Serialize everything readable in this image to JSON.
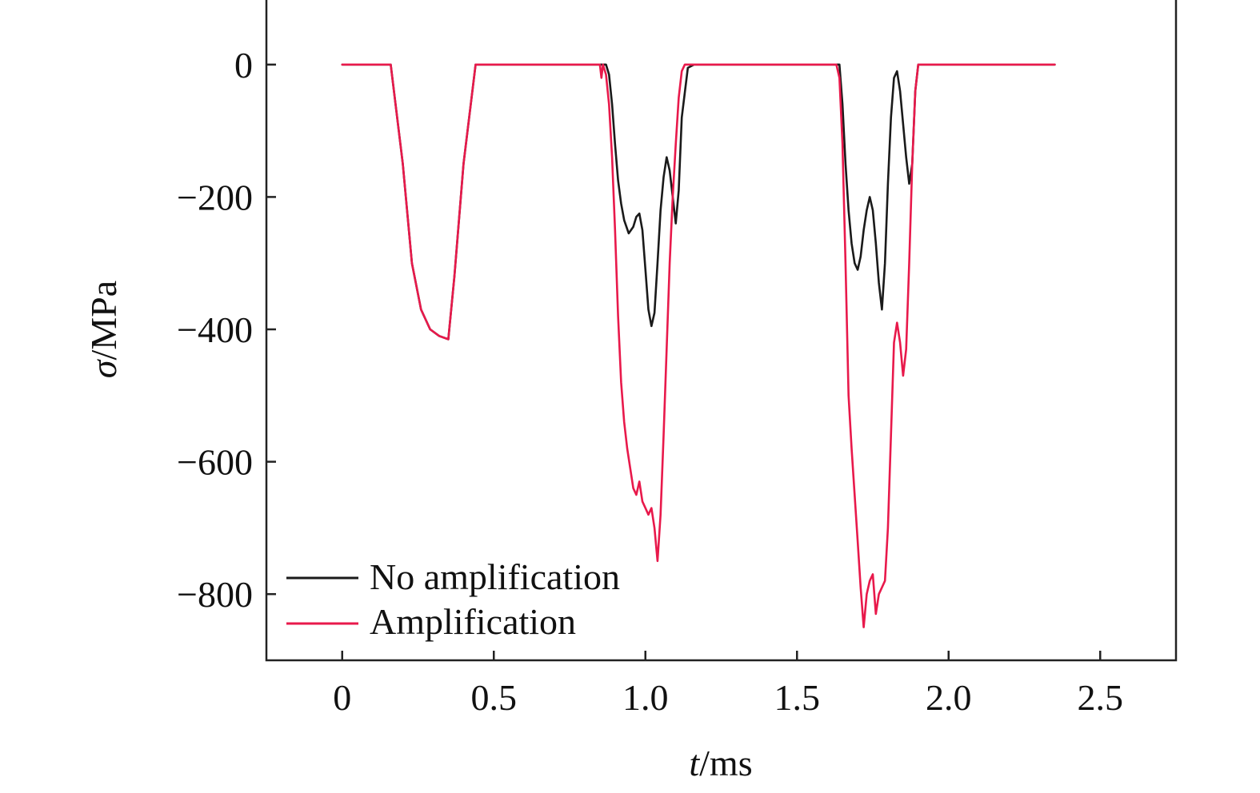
{
  "chart_data": {
    "type": "line",
    "title": "",
    "xlabel": {
      "symbol": "t",
      "unit": "/ms"
    },
    "ylabel": {
      "symbol": "σ",
      "unit": "/MPa"
    },
    "xlim": [
      -0.25,
      2.75
    ],
    "ylim": [
      -900,
      100
    ],
    "xticks": [
      0,
      0.5,
      1.0,
      1.5,
      2.0,
      2.5
    ],
    "xtick_labels": [
      "0",
      "0.5",
      "1.0",
      "1.5",
      "2.0",
      "2.5"
    ],
    "yticks": [
      0,
      -200,
      -400,
      -600,
      -800
    ],
    "ytick_labels": [
      "0",
      "−200",
      "−400",
      "−600",
      "−800"
    ],
    "grid": false,
    "legend_position": "bottom-left",
    "series": [
      {
        "name": "No amplification",
        "color": "#1a1a1a",
        "x": [
          0,
          0.16,
          0.2,
          0.23,
          0.26,
          0.29,
          0.32,
          0.35,
          0.37,
          0.4,
          0.44,
          0.5,
          0.6,
          0.7,
          0.8,
          0.87,
          0.88,
          0.89,
          0.9,
          0.91,
          0.92,
          0.93,
          0.945,
          0.96,
          0.97,
          0.98,
          0.99,
          1.0,
          1.01,
          1.02,
          1.03,
          1.04,
          1.05,
          1.06,
          1.07,
          1.08,
          1.09,
          1.1,
          1.11,
          1.12,
          1.14,
          1.16,
          1.3,
          1.5,
          1.6,
          1.64,
          1.65,
          1.66,
          1.67,
          1.68,
          1.69,
          1.7,
          1.71,
          1.72,
          1.73,
          1.74,
          1.75,
          1.76,
          1.77,
          1.78,
          1.79,
          1.8,
          1.81,
          1.82,
          1.83,
          1.84,
          1.85,
          1.86,
          1.87,
          1.88,
          1.89,
          1.9,
          2.0,
          2.2,
          2.35
        ],
        "y": [
          0,
          0,
          -150,
          -300,
          -370,
          -400,
          -410,
          -415,
          -320,
          -150,
          0,
          0,
          0,
          0,
          0,
          0,
          -15,
          -60,
          -120,
          -175,
          -210,
          -235,
          -255,
          -245,
          -230,
          -225,
          -250,
          -310,
          -370,
          -395,
          -375,
          -300,
          -220,
          -170,
          -140,
          -160,
          -200,
          -240,
          -190,
          -80,
          -5,
          0,
          0,
          0,
          0,
          0,
          -60,
          -150,
          -220,
          -270,
          -300,
          -310,
          -290,
          -250,
          -220,
          -200,
          -220,
          -270,
          -330,
          -370,
          -300,
          -180,
          -80,
          -20,
          -10,
          -40,
          -90,
          -140,
          -180,
          -150,
          -40,
          0,
          0,
          0,
          0
        ]
      },
      {
        "name": "Amplification",
        "color": "#e8194b",
        "x": [
          0,
          0.16,
          0.2,
          0.23,
          0.26,
          0.29,
          0.32,
          0.35,
          0.37,
          0.4,
          0.44,
          0.5,
          0.6,
          0.7,
          0.8,
          0.85,
          0.855,
          0.86,
          0.87,
          0.88,
          0.89,
          0.9,
          0.91,
          0.92,
          0.93,
          0.94,
          0.95,
          0.96,
          0.97,
          0.98,
          0.99,
          1.0,
          1.01,
          1.02,
          1.03,
          1.04,
          1.05,
          1.06,
          1.07,
          1.08,
          1.09,
          1.1,
          1.11,
          1.12,
          1.13,
          1.15,
          1.3,
          1.5,
          1.6,
          1.63,
          1.64,
          1.65,
          1.66,
          1.67,
          1.68,
          1.69,
          1.7,
          1.71,
          1.72,
          1.73,
          1.74,
          1.75,
          1.76,
          1.77,
          1.78,
          1.79,
          1.8,
          1.81,
          1.82,
          1.83,
          1.84,
          1.85,
          1.86,
          1.87,
          1.88,
          1.89,
          1.9,
          2.0,
          2.2,
          2.35
        ],
        "y": [
          0,
          0,
          -150,
          -300,
          -370,
          -400,
          -410,
          -415,
          -320,
          -150,
          0,
          0,
          0,
          0,
          0,
          0,
          -20,
          0,
          -15,
          -60,
          -140,
          -250,
          -380,
          -480,
          -540,
          -580,
          -610,
          -640,
          -650,
          -630,
          -660,
          -670,
          -680,
          -670,
          -700,
          -750,
          -680,
          -560,
          -430,
          -300,
          -200,
          -120,
          -50,
          -10,
          0,
          0,
          0,
          0,
          0,
          0,
          -20,
          -120,
          -300,
          -500,
          -580,
          -650,
          -720,
          -790,
          -850,
          -800,
          -780,
          -770,
          -830,
          -800,
          -790,
          -780,
          -700,
          -560,
          -420,
          -390,
          -420,
          -470,
          -430,
          -300,
          -150,
          -40,
          0,
          0,
          0,
          0
        ]
      }
    ]
  }
}
